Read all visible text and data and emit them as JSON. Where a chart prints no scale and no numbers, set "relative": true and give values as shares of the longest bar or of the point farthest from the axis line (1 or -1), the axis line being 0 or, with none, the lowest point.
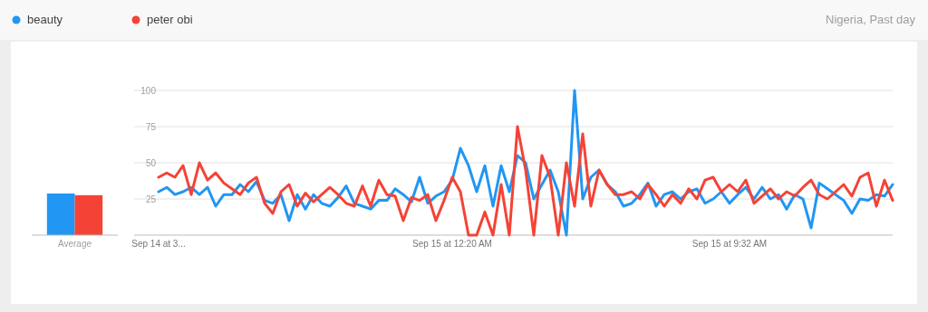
{
  "chart_data": [
    {
      "type": "bar",
      "categories": [
        "Average"
      ],
      "relative": true,
      "series": [
        {
          "color": "#2196f3",
          "values": [
            1
          ]
        },
        {
          "color": "#f44336",
          "values": [
            0.96
          ]
        }
      ]
    },
    {
      "type": "line",
      "annotations": [
        "Nigeria, Past day"
      ],
      "legend": "top left",
      "grid": "y",
      "ylim": [
        0,
        100
      ],
      "yticks": [
        25,
        50,
        75,
        100
      ],
      "categories": [
        "Sep 14 at 3...",
        null,
        null,
        null,
        null,
        null,
        null,
        null,
        null,
        null,
        null,
        null,
        null,
        null,
        null,
        null,
        null,
        null,
        null,
        null,
        null,
        null,
        null,
        null,
        null,
        null,
        null,
        null,
        null,
        null,
        null,
        null,
        null,
        null,
        null,
        null,
        "Sep 15 at 12:20 AM",
        null,
        null,
        null,
        null,
        null,
        null,
        null,
        null,
        null,
        null,
        null,
        null,
        null,
        null,
        null,
        null,
        null,
        null,
        null,
        null,
        null,
        null,
        null,
        null,
        null,
        null,
        null,
        null,
        null,
        null,
        null,
        null,
        null,
        "Sep 15 at 9:32 AM",
        null,
        null,
        null,
        null,
        null,
        null,
        null,
        null,
        null,
        null,
        null,
        null,
        null,
        null,
        null,
        null,
        null,
        null,
        null,
        null
      ],
      "series": [
        {
          "name": "beauty",
          "color": "#2196f3",
          "values": [
            30,
            33,
            28,
            30,
            33,
            28,
            33,
            20,
            28,
            28,
            35,
            30,
            37,
            24,
            22,
            28,
            10,
            28,
            18,
            28,
            22,
            20,
            26,
            34,
            22,
            20,
            18,
            24,
            24,
            32,
            28,
            23,
            40,
            22,
            27,
            30,
            38,
            60,
            48,
            30,
            48,
            20,
            48,
            30,
            55,
            50,
            25,
            35,
            45,
            30,
            0,
            100,
            25,
            40,
            45,
            35,
            30,
            20,
            22,
            28,
            36,
            20,
            28,
            30,
            25,
            30,
            32,
            22,
            25,
            30,
            22,
            28,
            33,
            25,
            33,
            25,
            28,
            18,
            28,
            25,
            5,
            36,
            32,
            28,
            24,
            15,
            25,
            24,
            28,
            27,
            35
          ]
        },
        {
          "name": "peter obi",
          "color": "#f44336",
          "values": [
            40,
            43,
            40,
            48,
            28,
            50,
            38,
            43,
            36,
            32,
            28,
            36,
            40,
            22,
            15,
            30,
            35,
            20,
            29,
            23,
            28,
            33,
            28,
            22,
            20,
            34,
            20,
            38,
            28,
            27,
            10,
            26,
            24,
            28,
            10,
            24,
            40,
            30,
            0,
            0,
            16,
            0,
            35,
            0,
            75,
            45,
            0,
            55,
            40,
            0,
            50,
            20,
            70,
            20,
            45,
            35,
            28,
            28,
            30,
            25,
            35,
            28,
            20,
            28,
            22,
            32,
            25,
            38,
            40,
            30,
            35,
            30,
            38,
            22,
            27,
            32,
            25,
            30,
            27,
            33,
            38,
            28,
            25,
            30,
            35,
            27,
            40,
            43,
            20,
            38,
            24
          ]
        }
      ]
    }
  ]
}
